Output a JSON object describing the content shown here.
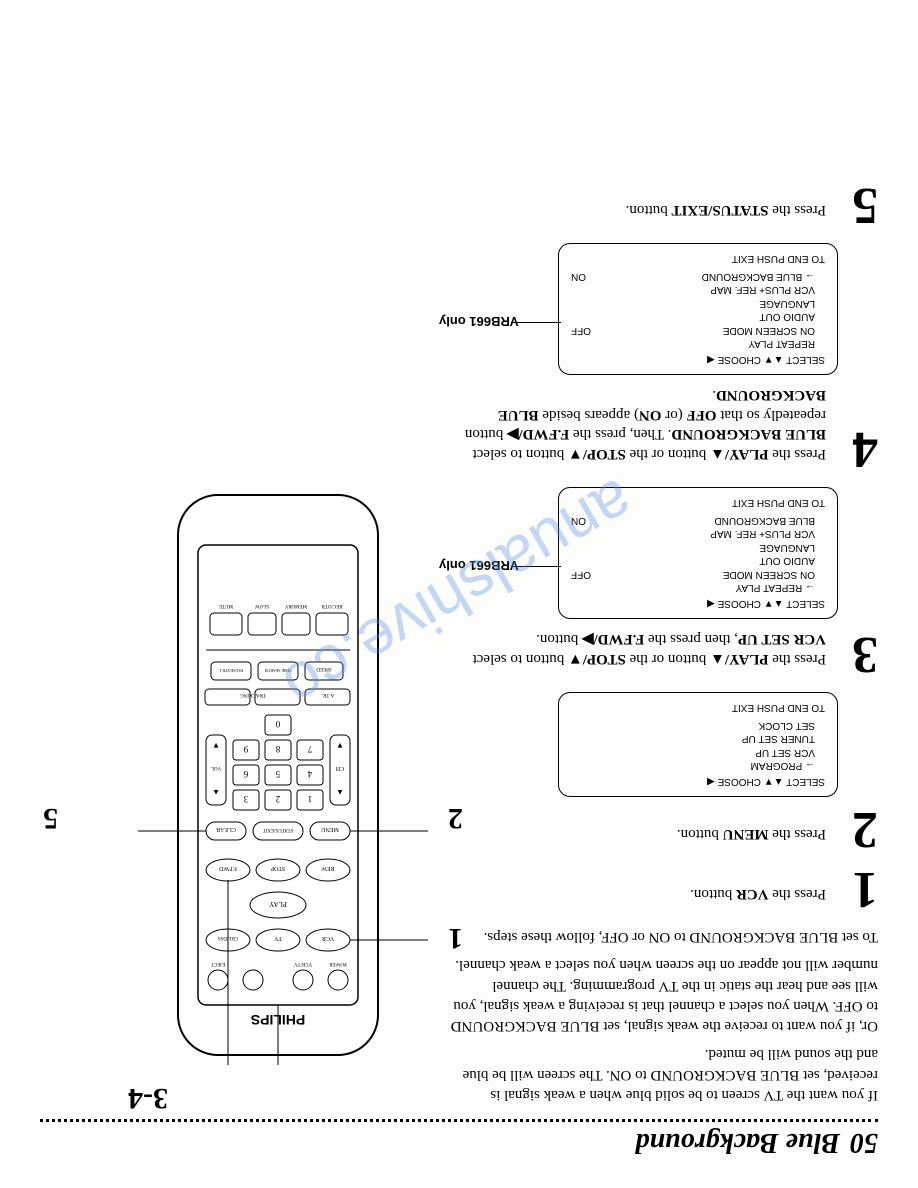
{
  "page_number": "50",
  "title": "Blue Background",
  "watermark": "anualshive.co",
  "intro": [
    "If you want the TV screen to be solid blue when a weak signal is received, set BLUE BACKGROUND to ON. The screen will be blue and the sound will be muted.",
    "Or, if you want to receive the weak signal, set BLUE BACKGROUND to OFF. When you select a channel that is receiving a weak signal, you will see and hear the static in the TV programming. The channel number will not appear on the screen when you select a weak channel.",
    "To set BLUE BACKGROUND to ON or OFF, follow these steps."
  ],
  "steps": [
    {
      "num": "1",
      "html": "Press the <b>VCR</b> button."
    },
    {
      "num": "2",
      "html": "Press the <b>MENU</b> button."
    },
    {
      "num": "3",
      "html": "Press the <b>PLAY/▲</b> button or the <b>STOP/▼</b> button to select <b>VCR SET UP</b>, then press the <b>F.FWD/▶</b> button."
    },
    {
      "num": "4",
      "html": "Press the <b>PLAY/▲</b> button or the <b>STOP/▼</b> button to select <b>BLUE BACKGROUND</b>. Then, press the <b>F.FWD/▶</b> button repeatedly so that <b>OFF</b> (or <b>ON</b>) appears beside <b>BLUE BACKGROUND</b>."
    },
    {
      "num": "5",
      "html": "Press the <b>STATUS/EXIT</b> button."
    }
  ],
  "osd_menu1": {
    "header": "SELECT ▲▼ CHOOSE ◀",
    "items": [
      "→ PROGRAM",
      "VCR SET UP",
      "TUNER SET UP",
      "SET CLOCK"
    ],
    "footer": "TO END PUSH EXIT"
  },
  "osd_menu2": {
    "header": "SELECT ▲▼ CHOOSE ◀",
    "rows": [
      [
        "→ REPEAT PLAY",
        ""
      ],
      [
        "ON SCREEN MODE",
        "OFF"
      ],
      [
        "AUDIO OUT",
        ""
      ],
      [
        "LANGUAGE",
        ""
      ],
      [
        "VCR PLUS+ REF. MAP",
        ""
      ],
      [
        "BLUE BACKGROUND",
        "ON"
      ]
    ],
    "footer": "TO END PUSH EXIT",
    "note": "VRB661 only"
  },
  "osd_menu3": {
    "header": "SELECT ▲▼ CHOOSE ◀",
    "rows": [
      [
        "REPEAT PLAY",
        ""
      ],
      [
        "ON SCREEN MODE",
        "OFF"
      ],
      [
        "AUDIO OUT",
        ""
      ],
      [
        "LANGUAGE",
        ""
      ],
      [
        "VCR PLUS+ REF. MAP",
        ""
      ],
      [
        "→ BLUE BACKGROUND",
        "ON"
      ]
    ],
    "footer": "TO END PUSH EXIT",
    "note": "VRB661 only"
  },
  "remote_callouts": {
    "top": "3-4",
    "c1": "1",
    "c2": "2",
    "c5": "5"
  },
  "remote_brand": "PHILIPS",
  "remote_labels": {
    "row1": [
      "POWER",
      "VCR/TV",
      "",
      "EJECT"
    ],
    "row2": [
      "VCR",
      "TV",
      "CBL/DSS"
    ],
    "row3": [
      "PLAY"
    ],
    "row4": [
      "REW",
      "STOP",
      "F.FWD"
    ],
    "row5": [
      "MENU",
      "STATUS/EXIT",
      "CLEAR"
    ],
    "row_digits": [
      "1",
      "2",
      "3",
      "4",
      "5",
      "6",
      "7",
      "8",
      "9",
      "0"
    ],
    "side": [
      "CH",
      "VOL"
    ],
    "bottom_rows": [
      [
        "SPEED",
        "TIME SEARCH",
        "PAUSE/STILL"
      ],
      [
        "A.TR",
        "TRACKING"
      ]
    ],
    "bottom": [
      "REC/OTR",
      "MEMORY",
      "SLOW",
      "MUTE"
    ]
  }
}
